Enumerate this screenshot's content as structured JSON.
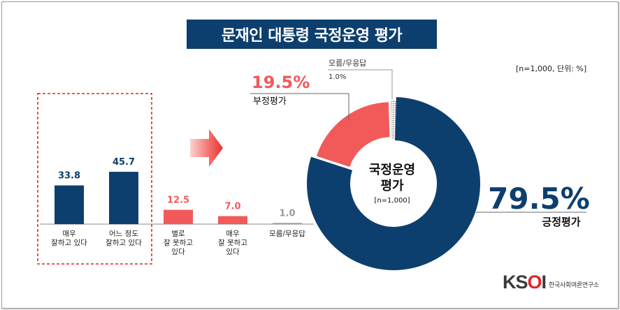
{
  "title": "문재인 대통령 국정운영 평가",
  "note": "[n=1,000,  단위: %]",
  "colors": {
    "navy": "#0d3f6e",
    "red": "#f25a59",
    "grey": "#9a9a9a"
  },
  "brand": {
    "logo": "KSOI",
    "org": "한국사회여론연구소"
  },
  "chart_data": [
    {
      "type": "bar",
      "categories": [
        [
          "매우",
          "잘하고 있다"
        ],
        [
          "어느 정도",
          "잘하고 있다"
        ],
        [
          "별로",
          "잘 못하고",
          "있다"
        ],
        [
          "매우",
          "잘 못하고",
          "있다"
        ],
        [
          "모름/무응답"
        ]
      ],
      "values": [
        33.8,
        45.7,
        12.5,
        7.0,
        1.0
      ],
      "value_labels": [
        "33.8",
        "45.7",
        "12.5",
        "7.0",
        "1.0"
      ],
      "colors": [
        "#0d3f6e",
        "#0d3f6e",
        "#f25a59",
        "#f25a59",
        "#9a9a9a"
      ],
      "ylim": [
        0,
        50
      ]
    },
    {
      "type": "pie",
      "style": "donut",
      "center_label": [
        "국정운영",
        "평가"
      ],
      "center_sublabel": "[n=1,000]",
      "slices": [
        {
          "label": "긍정평가",
          "value": 79.5,
          "value_label": "79.5%",
          "color": "#0d3f6e"
        },
        {
          "label": "부정평가",
          "value": 19.5,
          "value_label": "19.5%",
          "color": "#f25a59"
        },
        {
          "label": "모름/무응답",
          "value": 1.0,
          "value_label": "1.0%",
          "color": "#9a9a9a"
        }
      ]
    }
  ]
}
